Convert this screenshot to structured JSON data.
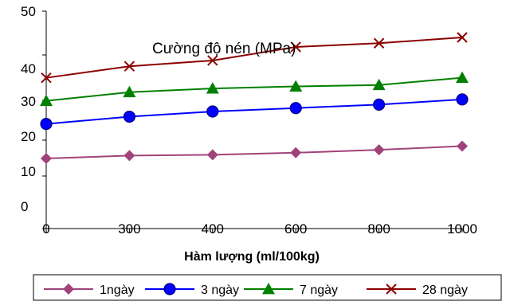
{
  "chart_data": {
    "type": "line",
    "title": "Cường độ nén (MPa)",
    "xlabel": "Hàm lượng (ml/100kg)",
    "ylabel": "",
    "categories": [
      "0",
      "300",
      "400",
      "600",
      "800",
      "1000"
    ],
    "y_tick_labels": [
      "50",
      "40",
      "30",
      "20",
      "10",
      "0"
    ],
    "ylim": [
      0,
      50
    ],
    "grid": false,
    "legend_position": "bottom",
    "series": [
      {
        "name": "1ngày",
        "values": [
          8.0,
          9.0,
          9.3,
          10.0,
          11.0,
          12.3
        ],
        "color": "#A0437A",
        "marker": "diamond"
      },
      {
        "name": "3 ngày",
        "values": [
          20.0,
          22.5,
          24.3,
          25.5,
          26.7,
          28.5
        ],
        "color": "#0000FF",
        "marker": "circle"
      },
      {
        "name": "7 ngày",
        "values": [
          28.0,
          31.0,
          32.3,
          33.0,
          33.5,
          36.0
        ],
        "color": "#008000",
        "marker": "triangle"
      },
      {
        "name": "28 ngày",
        "values": [
          36.0,
          40.0,
          42.0,
          46.7,
          48.0,
          50.0
        ],
        "color": "#8B0000",
        "marker": "x"
      }
    ]
  }
}
